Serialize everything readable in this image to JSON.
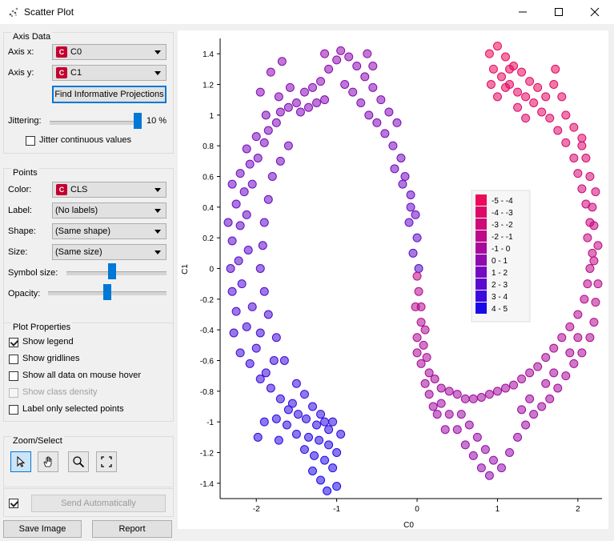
{
  "window": {
    "title": "Scatter Plot",
    "minimize_icon": "minimize-icon",
    "maximize_icon": "maximize-icon",
    "close_icon": "close-icon"
  },
  "axis_data": {
    "group_title": "Axis Data",
    "x_label": "Axis x:",
    "x_value": "C0",
    "y_label": "Axis y:",
    "y_value": "C1",
    "find_button": "Find Informative Projections",
    "jitter_label": "Jittering:",
    "jitter_value": "10 %",
    "jitter_level": 1.0,
    "jitter_cont_label": "Jitter continuous values",
    "jitter_cont_checked": false
  },
  "points": {
    "group_title": "Points",
    "color_label": "Color:",
    "color_value": "CLS",
    "label_label": "Label:",
    "label_value": "(No labels)",
    "shape_label": "Shape:",
    "shape_value": "(Same shape)",
    "size_label": "Size:",
    "size_value": "(Same size)",
    "symbol_size_label": "Symbol size:",
    "symbol_size_level": 0.45,
    "opacity_label": "Opacity:",
    "opacity_level": 0.5
  },
  "plot_properties": {
    "group_title": "Plot Properties",
    "items": [
      {
        "label": "Show legend",
        "checked": true,
        "disabled": false
      },
      {
        "label": "Show gridlines",
        "checked": false,
        "disabled": false
      },
      {
        "label": "Show all data on mouse hover",
        "checked": false,
        "disabled": false
      },
      {
        "label": "Show class density",
        "checked": false,
        "disabled": true
      },
      {
        "label": "Label only selected points",
        "checked": false,
        "disabled": false
      }
    ]
  },
  "zoom_select": {
    "group_title": "Zoom/Select",
    "tools": [
      "pointer-icon",
      "hand-pan-icon",
      "magnifier-zoom-icon",
      "fit-view-icon"
    ]
  },
  "bottom": {
    "send_auto_checked": true,
    "send_auto_label": "Send Automatically",
    "save_image": "Save Image",
    "report": "Report"
  },
  "chart_data": {
    "type": "scatter",
    "xlabel": "C0",
    "ylabel": "C1",
    "xlim": [
      -2.45,
      2.3
    ],
    "ylim": [
      -1.5,
      1.5
    ],
    "x_ticks": [
      -2,
      -1,
      0,
      1,
      2
    ],
    "y_ticks": [
      -1.4,
      -1.2,
      -1,
      -0.8,
      -0.6,
      -0.4,
      -0.2,
      0,
      0.2,
      0.4,
      0.6,
      0.8,
      1,
      1.2,
      1.4
    ],
    "grid": false,
    "legend_position": "center-right",
    "legend": [
      {
        "label": "-5 - -4",
        "color": "#ec0a5a"
      },
      {
        "label": "-4 - -3",
        "color": "#dd0a68"
      },
      {
        "label": "-3 - -2",
        "color": "#cd0a77"
      },
      {
        "label": "-2 - -1",
        "color": "#bc0a89"
      },
      {
        "label": "-1 - 0",
        "color": "#a80a9b"
      },
      {
        "label": "0 - 1",
        "color": "#900aae"
      },
      {
        "label": "1 - 2",
        "color": "#760ac0"
      },
      {
        "label": "2 - 3",
        "color": "#5a0ad0"
      },
      {
        "label": "3 - 4",
        "color": "#3c0ade"
      },
      {
        "label": "4 - 5",
        "color": "#1a0ae8"
      }
    ],
    "series": [
      {
        "shape": "left-ring",
        "color_from": "#1a0ae8",
        "color_to": "#900aae",
        "points": [
          [
            -1.0,
            -1.42
          ],
          [
            -1.12,
            -1.45
          ],
          [
            -1.2,
            -1.38
          ],
          [
            -1.3,
            -1.32
          ],
          [
            -1.05,
            -1.3
          ],
          [
            -1.15,
            -1.25
          ],
          [
            -1.28,
            -1.22
          ],
          [
            -1.4,
            -1.18
          ],
          [
            -1.0,
            -1.2
          ],
          [
            -1.1,
            -1.15
          ],
          [
            -1.22,
            -1.12
          ],
          [
            -1.35,
            -1.1
          ],
          [
            -1.5,
            -1.08
          ],
          [
            -1.62,
            -1.02
          ],
          [
            -1.05,
            -1.0
          ],
          [
            -1.15,
            -1.0
          ],
          [
            -1.25,
            -1.02
          ],
          [
            -1.38,
            -0.98
          ],
          [
            -1.48,
            -0.95
          ],
          [
            -1.6,
            -0.92
          ],
          [
            -1.75,
            -0.98
          ],
          [
            -1.9,
            -1.0
          ],
          [
            -1.98,
            -1.1
          ],
          [
            -1.72,
            -1.12
          ],
          [
            -1.55,
            -0.88
          ],
          [
            -1.7,
            -0.85
          ],
          [
            -1.82,
            -0.78
          ],
          [
            -1.95,
            -0.72
          ],
          [
            -2.08,
            -0.62
          ],
          [
            -2.2,
            -0.55
          ],
          [
            -2.28,
            -0.42
          ],
          [
            -1.88,
            -0.68
          ],
          [
            -1.78,
            -0.6
          ],
          [
            -2.0,
            -0.52
          ],
          [
            -2.12,
            -0.38
          ],
          [
            -2.25,
            -0.28
          ],
          [
            -2.3,
            -0.15
          ],
          [
            -2.05,
            -0.25
          ],
          [
            -1.95,
            -0.42
          ],
          [
            -2.18,
            -0.1
          ],
          [
            -2.32,
            0.0
          ],
          [
            -2.22,
            0.05
          ],
          [
            -2.1,
            0.12
          ],
          [
            -2.3,
            0.18
          ],
          [
            -2.2,
            0.28
          ],
          [
            -2.35,
            0.3
          ],
          [
            -2.12,
            0.35
          ],
          [
            -2.25,
            0.42
          ],
          [
            -2.15,
            0.5
          ],
          [
            -2.3,
            0.55
          ],
          [
            -2.05,
            0.55
          ],
          [
            -2.2,
            0.62
          ],
          [
            -2.08,
            0.68
          ],
          [
            -1.98,
            0.72
          ],
          [
            -2.12,
            0.78
          ],
          [
            -1.9,
            0.82
          ],
          [
            -2.0,
            0.86
          ],
          [
            -1.85,
            0.9
          ],
          [
            -1.75,
            0.95
          ],
          [
            -1.88,
            1.0
          ],
          [
            -1.7,
            1.02
          ],
          [
            -1.6,
            1.05
          ],
          [
            -1.5,
            1.08
          ],
          [
            -1.72,
            1.12
          ],
          [
            -1.58,
            1.18
          ],
          [
            -1.45,
            1.02
          ],
          [
            -1.35,
            1.05
          ],
          [
            -1.25,
            1.08
          ],
          [
            -1.15,
            1.1
          ],
          [
            -1.4,
            1.15
          ],
          [
            -1.3,
            1.18
          ],
          [
            -1.2,
            1.22
          ],
          [
            -1.1,
            1.3
          ],
          [
            -1.0,
            1.36
          ],
          [
            -1.15,
            1.4
          ],
          [
            -0.95,
            1.42
          ],
          [
            -0.85,
            1.38
          ],
          [
            -0.75,
            1.32
          ],
          [
            -0.65,
            1.25
          ],
          [
            -0.55,
            1.18
          ],
          [
            -0.45,
            1.1
          ],
          [
            -0.9,
            1.2
          ],
          [
            -0.8,
            1.15
          ],
          [
            -0.7,
            1.08
          ],
          [
            -0.6,
            1.0
          ],
          [
            -0.5,
            0.95
          ],
          [
            -0.4,
            0.88
          ],
          [
            -0.3,
            0.8
          ],
          [
            -0.2,
            0.72
          ],
          [
            -0.25,
            0.95
          ],
          [
            -0.35,
            1.02
          ],
          [
            -0.15,
            0.6
          ],
          [
            -0.08,
            0.48
          ],
          [
            -0.02,
            0.35
          ],
          [
            -0.1,
            0.3
          ],
          [
            0.0,
            0.2
          ],
          [
            -0.05,
            0.1
          ],
          [
            0.02,
            0.0
          ],
          [
            -0.08,
            0.4
          ],
          [
            -0.18,
            0.55
          ],
          [
            -0.28,
            0.65
          ],
          [
            -0.55,
            1.32
          ],
          [
            -0.62,
            1.4
          ],
          [
            -1.68,
            1.35
          ],
          [
            -1.82,
            1.28
          ],
          [
            -1.95,
            1.15
          ],
          [
            -1.6,
            0.8
          ],
          [
            -1.7,
            0.7
          ],
          [
            -1.8,
            0.6
          ],
          [
            -1.85,
            0.45
          ],
          [
            -1.9,
            0.3
          ],
          [
            -1.92,
            0.15
          ],
          [
            -1.95,
            0.0
          ],
          [
            -1.9,
            -0.15
          ],
          [
            -1.85,
            -0.3
          ],
          [
            -1.75,
            -0.45
          ],
          [
            -1.65,
            -0.6
          ],
          [
            -1.5,
            -0.75
          ],
          [
            -1.4,
            -0.82
          ],
          [
            -1.3,
            -0.9
          ],
          [
            -1.2,
            -0.95
          ],
          [
            -1.1,
            -1.05
          ],
          [
            -0.95,
            -1.08
          ]
        ]
      },
      {
        "shape": "right-ring",
        "color_from": "#900aae",
        "color_to": "#ec0a5a",
        "points": [
          [
            0.0,
            -0.05
          ],
          [
            0.02,
            -0.15
          ],
          [
            -0.02,
            -0.25
          ],
          [
            0.05,
            -0.35
          ],
          [
            0.0,
            -0.45
          ],
          [
            0.08,
            -0.5
          ],
          [
            0.12,
            -0.58
          ],
          [
            0.05,
            -0.62
          ],
          [
            0.15,
            -0.68
          ],
          [
            0.22,
            -0.72
          ],
          [
            0.3,
            -0.78
          ],
          [
            0.4,
            -0.8
          ],
          [
            0.5,
            -0.82
          ],
          [
            0.6,
            -0.85
          ],
          [
            0.7,
            -0.85
          ],
          [
            0.8,
            -0.84
          ],
          [
            0.9,
            -0.82
          ],
          [
            1.0,
            -0.8
          ],
          [
            1.1,
            -0.78
          ],
          [
            1.2,
            -0.76
          ],
          [
            1.3,
            -0.72
          ],
          [
            1.4,
            -0.68
          ],
          [
            1.5,
            -0.64
          ],
          [
            1.6,
            -0.58
          ],
          [
            1.7,
            -0.52
          ],
          [
            1.8,
            -0.45
          ],
          [
            1.9,
            -0.38
          ],
          [
            2.0,
            -0.3
          ],
          [
            2.08,
            -0.2
          ],
          [
            2.12,
            -0.1
          ],
          [
            2.15,
            0.0
          ],
          [
            2.18,
            0.1
          ],
          [
            2.12,
            0.2
          ],
          [
            2.15,
            0.3
          ],
          [
            2.1,
            0.42
          ],
          [
            2.05,
            0.52
          ],
          [
            2.0,
            0.62
          ],
          [
            1.95,
            0.72
          ],
          [
            1.85,
            0.82
          ],
          [
            1.75,
            0.9
          ],
          [
            1.65,
            0.98
          ],
          [
            1.55,
            1.02
          ],
          [
            1.45,
            1.08
          ],
          [
            1.35,
            1.12
          ],
          [
            1.25,
            1.15
          ],
          [
            1.15,
            1.2
          ],
          [
            1.05,
            1.25
          ],
          [
            0.95,
            1.3
          ],
          [
            0.9,
            1.4
          ],
          [
            1.0,
            1.45
          ],
          [
            1.1,
            1.38
          ],
          [
            1.2,
            1.32
          ],
          [
            1.3,
            1.28
          ],
          [
            1.4,
            1.22
          ],
          [
            1.5,
            1.18
          ],
          [
            1.6,
            1.12
          ],
          [
            0.55,
            -0.95
          ],
          [
            0.65,
            -1.02
          ],
          [
            0.75,
            -1.1
          ],
          [
            0.85,
            -1.18
          ],
          [
            0.95,
            -1.25
          ],
          [
            1.05,
            -1.3
          ],
          [
            1.15,
            -1.2
          ],
          [
            1.25,
            -1.1
          ],
          [
            1.35,
            -1.02
          ],
          [
            1.45,
            -0.95
          ],
          [
            1.55,
            -0.9
          ],
          [
            1.65,
            -0.85
          ],
          [
            1.75,
            -0.78
          ],
          [
            1.85,
            -0.7
          ],
          [
            1.95,
            -0.62
          ],
          [
            2.05,
            -0.55
          ],
          [
            2.15,
            -0.45
          ],
          [
            2.2,
            -0.35
          ],
          [
            2.22,
            -0.22
          ],
          [
            2.25,
            -0.1
          ],
          [
            2.2,
            0.05
          ],
          [
            2.25,
            0.15
          ],
          [
            2.2,
            0.28
          ],
          [
            2.18,
            0.4
          ],
          [
            2.22,
            0.5
          ],
          [
            2.15,
            0.6
          ],
          [
            2.1,
            0.72
          ],
          [
            2.05,
            0.8
          ],
          [
            0.9,
            -1.35
          ],
          [
            0.8,
            -1.3
          ],
          [
            0.7,
            -1.22
          ],
          [
            0.6,
            -1.15
          ],
          [
            0.5,
            -1.05
          ],
          [
            0.4,
            -0.95
          ],
          [
            0.3,
            -0.88
          ],
          [
            0.25,
            -0.95
          ],
          [
            0.35,
            -1.05
          ],
          [
            1.3,
            -0.92
          ],
          [
            1.4,
            -0.85
          ],
          [
            1.6,
            -0.75
          ],
          [
            1.7,
            -0.68
          ],
          [
            1.9,
            -0.55
          ],
          [
            2.0,
            -0.45
          ],
          [
            0.15,
            -0.82
          ],
          [
            0.1,
            -0.75
          ],
          [
            0.2,
            -0.9
          ],
          [
            0.0,
            -0.55
          ],
          [
            0.05,
            -0.25
          ],
          [
            0.1,
            -0.4
          ],
          [
            1.85,
            1.0
          ],
          [
            1.95,
            0.92
          ],
          [
            2.05,
            0.85
          ],
          [
            1.8,
            1.12
          ],
          [
            1.7,
            1.2
          ],
          [
            1.72,
            1.3
          ],
          [
            1.0,
            1.12
          ],
          [
            1.1,
            1.18
          ],
          [
            0.92,
            1.2
          ],
          [
            1.15,
            1.3
          ],
          [
            1.25,
            1.05
          ],
          [
            1.35,
            0.98
          ]
        ]
      }
    ]
  }
}
